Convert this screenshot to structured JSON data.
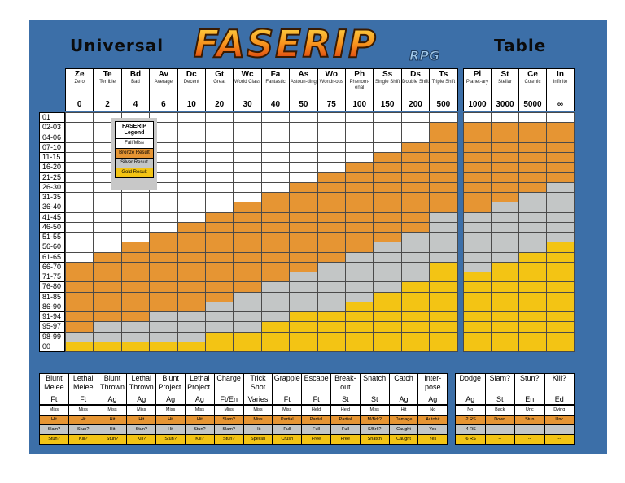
{
  "title": {
    "left": "Universal",
    "logo": "FASERIP",
    "logo_sub": "RPG",
    "right": "Table"
  },
  "ranks": [
    {
      "abbr": "Ze",
      "name": "Zero",
      "num": "0"
    },
    {
      "abbr": "Te",
      "name": "Terrible",
      "num": "2"
    },
    {
      "abbr": "Bd",
      "name": "Bad",
      "num": "4"
    },
    {
      "abbr": "Av",
      "name": "Average",
      "num": "6"
    },
    {
      "abbr": "Dc",
      "name": "Decent",
      "num": "10"
    },
    {
      "abbr": "Gt",
      "name": "Great",
      "num": "20"
    },
    {
      "abbr": "Wc",
      "name": "World Class",
      "num": "30"
    },
    {
      "abbr": "Fa",
      "name": "Fantastic",
      "num": "40"
    },
    {
      "abbr": "As",
      "name": "Astoun-ding",
      "num": "50"
    },
    {
      "abbr": "Wo",
      "name": "Wondr-ous",
      "num": "75"
    },
    {
      "abbr": "Ph",
      "name": "Phenom-enal",
      "num": "100"
    },
    {
      "abbr": "Ss",
      "name": "Single Shift",
      "num": "150"
    },
    {
      "abbr": "Ds",
      "name": "Double Shift",
      "num": "200"
    },
    {
      "abbr": "Ts",
      "name": "Triple Shift",
      "num": "500"
    }
  ],
  "cosmic_ranks": [
    {
      "abbr": "Pl",
      "name": "Planet-ary",
      "num": "1000"
    },
    {
      "abbr": "St",
      "name": "Stellar",
      "num": "3000"
    },
    {
      "abbr": "Ce",
      "name": "Cosmic",
      "num": "5000"
    },
    {
      "abbr": "In",
      "name": "Infinite",
      "num": "∞"
    }
  ],
  "rolls": [
    "01",
    "02-03",
    "04-06",
    "07-10",
    "11-15",
    "16-20",
    "21-25",
    "26-30",
    "31-35",
    "36-40",
    "41-45",
    "46-50",
    "51-55",
    "56-60",
    "61-65",
    "66-70",
    "71-75",
    "76-80",
    "81-85",
    "86-90",
    "91-94",
    "95-97",
    "98-99",
    "00"
  ],
  "grid": [
    "WWWWWWWWWWWWWW",
    "WWWWWWWWWWWWWO",
    "WWWWWWWWWWWWWO",
    "WWWWWWWWWWWWOO",
    "WWWWWWWWWWWOOO",
    "WWWWWWWWWWOOOO",
    "WWWWWWWWWOOOOO",
    "WWWWWWWWOOOOOO",
    "WWWWWWWOOOOOOO",
    "WWWWWWOOOOOOOO",
    "WWWWWOOOOOOOOG",
    "WWWWOOOOOOOOOG",
    "WWWOOOOOOOOOGG",
    "WWOOOOOOOOOGGG",
    "WOOOOOOOOOGGGG",
    "OOOOOOOOOGGGGY",
    "OOOOOOOOGGGGGY",
    "OOOOOOOGGGGGYY",
    "OOOOOOGGGGGYYY",
    "OOOOOGGGGGYYYY",
    "OOOGGGGGYYYYYY",
    "OGGGGGGYYYYYYY",
    "GGGGGYYYYYYYYY",
    "YYYYYYYYYYYYYY"
  ],
  "cosmic_grid": [
    "WWWW",
    "OOOO",
    "OOOO",
    "OOOO",
    "OOOO",
    "OOOO",
    "OOOO",
    "OOOG",
    "OOGG",
    "OGGG",
    "GGGG",
    "GGGG",
    "GGGG",
    "GGGY",
    "GGYY",
    "GYYY",
    "YYYY",
    "YYYY",
    "YYYY",
    "YYYY",
    "YYYY",
    "YYYY",
    "YYYY",
    "YYYY"
  ],
  "legend": {
    "title": "FASERIP Legend",
    "items": [
      "Fail/Miss",
      "Bronze Result",
      "Silver Result",
      "Gold Result"
    ]
  },
  "actions": [
    {
      "label": "Blunt Melee",
      "stat": "Ft",
      "r": [
        "Miss",
        "Hit",
        "Slam?",
        "Stun?"
      ]
    },
    {
      "label": "Lethal Melee",
      "stat": "Ft",
      "r": [
        "Miss",
        "Hit",
        "Stun?",
        "Kill?"
      ]
    },
    {
      "label": "Blunt Thrown",
      "stat": "Ag",
      "r": [
        "Miss",
        "Hit",
        "Hit",
        "Stun?"
      ]
    },
    {
      "label": "Lethal Thrown",
      "stat": "Ag",
      "r": [
        "Miss",
        "Hit",
        "Stun?",
        "Kill?"
      ]
    },
    {
      "label": "Blunt Project.",
      "stat": "Ag",
      "r": [
        "Miss",
        "Hit",
        "Hit",
        "Stun?"
      ]
    },
    {
      "label": "Lethal Project.",
      "stat": "Ag",
      "r": [
        "Miss",
        "Hit",
        "Stun?",
        "Kill?"
      ]
    },
    {
      "label": "Charge",
      "stat": "Ft/En",
      "r": [
        "Miss",
        "Slam?",
        "Slam?",
        "Stun?"
      ]
    },
    {
      "label": "Trick Shot",
      "stat": "Varies",
      "r": [
        "Miss",
        "Miss",
        "Hit",
        "Special"
      ]
    },
    {
      "label": "Grapple",
      "stat": "Ft",
      "r": [
        "Miss",
        "Partial",
        "Full",
        "Crush"
      ]
    },
    {
      "label": "Escape",
      "stat": "Ft",
      "r": [
        "Held",
        "Partial",
        "Full",
        "Free"
      ]
    },
    {
      "label": "Break-out",
      "stat": "St",
      "r": [
        "Held",
        "Partial",
        "Full",
        "Free"
      ]
    },
    {
      "label": "Snatch",
      "stat": "St",
      "r": [
        "Miss",
        "M/Brk?",
        "S/Brk?",
        "Snatch"
      ]
    },
    {
      "label": "Catch",
      "stat": "Ag",
      "r": [
        "Hit",
        "Damage",
        "Caught",
        "Caught"
      ]
    },
    {
      "label": "Inter-pose",
      "stat": "Ag",
      "r": [
        "No",
        "Autohit",
        "Yes",
        "Yes"
      ]
    }
  ],
  "effects": [
    {
      "label": "Dodge",
      "stat": "Ag",
      "r": [
        "No",
        "-2 RS",
        "-4 RS",
        "-6 RS"
      ]
    },
    {
      "label": "Slam?",
      "stat": "St",
      "r": [
        "Back",
        "Down",
        "--",
        "--"
      ]
    },
    {
      "label": "Stun?",
      "stat": "En",
      "r": [
        "Unc",
        "Stun",
        "--",
        "--"
      ]
    },
    {
      "label": "Kill?",
      "stat": "Ed",
      "r": [
        "Dying",
        "Unc",
        "--",
        "--"
      ]
    }
  ],
  "colors": {
    "panel": "#3c6fa8",
    "white": "#ffffff",
    "bronze": "#e69533",
    "silver": "#c3c6c6",
    "gold": "#f3c414"
  }
}
